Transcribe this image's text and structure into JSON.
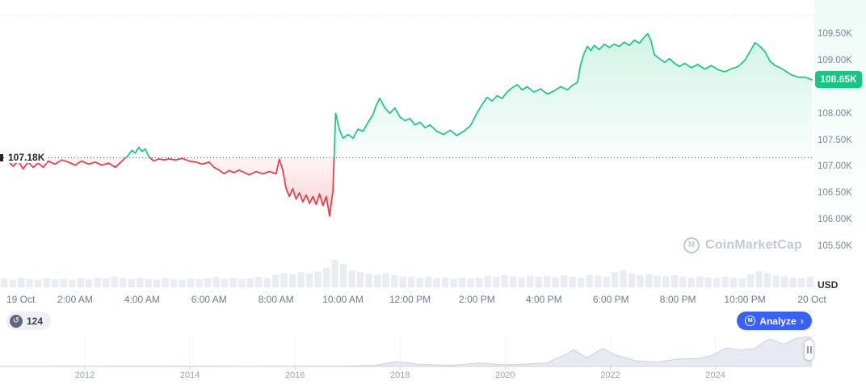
{
  "colors": {
    "green": "#16c784",
    "red": "#ea3943",
    "blue": "#3861fb",
    "axis_text": "#7d879c",
    "dark_text": "#222531",
    "watermark": "#c2c9d6",
    "volume_bar": "#e9ecf2",
    "mini_fill": "#e7eaf0",
    "mini_stroke": "#cbd2de"
  },
  "icons": {
    "history": "↺",
    "chevron_right": "›",
    "logo_letter": "M"
  },
  "ref_line": {
    "label": "107.18K",
    "value": 107.18
  },
  "price_badge": {
    "label": "108.65K",
    "value": 108.65
  },
  "y_axis": {
    "unit_label": "USD",
    "ticks": [
      {
        "label": "109.50K",
        "value": 109.5
      },
      {
        "label": "109.00K",
        "value": 109.0
      },
      {
        "label": "108.00K",
        "value": 108.0
      },
      {
        "label": "107.50K",
        "value": 107.5
      },
      {
        "label": "107.00K",
        "value": 107.0
      },
      {
        "label": "106.50K",
        "value": 106.5
      },
      {
        "label": "106.00K",
        "value": 106.0
      },
      {
        "label": "105.50K",
        "value": 105.5
      }
    ]
  },
  "x_axis": {
    "ticks": [
      {
        "label": "19 Oct",
        "hour": 0
      },
      {
        "label": "2:00 AM",
        "hour": 2
      },
      {
        "label": "4:00 AM",
        "hour": 4
      },
      {
        "label": "6:00 AM",
        "hour": 6
      },
      {
        "label": "8:00 AM",
        "hour": 8
      },
      {
        "label": "10:00 AM",
        "hour": 10
      },
      {
        "label": "12:00 PM",
        "hour": 12
      },
      {
        "label": "2:00 PM",
        "hour": 14
      },
      {
        "label": "4:00 PM",
        "hour": 16
      },
      {
        "label": "6:00 PM",
        "hour": 18
      },
      {
        "label": "8:00 PM",
        "hour": 20
      },
      {
        "label": "10:00 PM",
        "hour": 22
      },
      {
        "label": "20 Oct",
        "hour": 24
      }
    ]
  },
  "watermark": {
    "text": "CoinMarketCap"
  },
  "history_badge": {
    "count": "124"
  },
  "analyze_button": {
    "label": "Analyze"
  },
  "chart_data": {
    "type": "line",
    "title": "24h price chart (USD thousands), 19 Oct - 20 Oct",
    "x_unit": "hours since 19 Oct 00:00",
    "x_range": [
      0,
      24
    ],
    "y_range": [
      105.5,
      109.5
    ],
    "y_unit": "K USD",
    "previous_close": 107.18,
    "last_price": 108.65,
    "grid": "off",
    "main_series": [
      [
        0,
        107.12
      ],
      [
        0.15,
        107.02
      ],
      [
        0.3,
        107.12
      ],
      [
        0.45,
        106.97
      ],
      [
        0.6,
        107.1
      ],
      [
        0.75,
        107.0
      ],
      [
        0.9,
        107.08
      ],
      [
        1.05,
        107.0
      ],
      [
        1.2,
        107.12
      ],
      [
        1.4,
        107.06
      ],
      [
        1.6,
        107.14
      ],
      [
        1.8,
        107.1
      ],
      [
        2.0,
        107.04
      ],
      [
        2.2,
        107.12
      ],
      [
        2.4,
        107.06
      ],
      [
        2.6,
        107.1
      ],
      [
        2.8,
        107.04
      ],
      [
        3.0,
        107.08
      ],
      [
        3.2,
        107.0
      ],
      [
        3.4,
        107.12
      ],
      [
        3.55,
        107.2
      ],
      [
        3.7,
        107.32
      ],
      [
        3.8,
        107.27
      ],
      [
        3.9,
        107.38
      ],
      [
        4.0,
        107.3
      ],
      [
        4.1,
        107.35
      ],
      [
        4.2,
        107.2
      ],
      [
        4.35,
        107.12
      ],
      [
        4.5,
        107.16
      ],
      [
        4.65,
        107.14
      ],
      [
        4.8,
        107.16
      ],
      [
        5.0,
        107.14
      ],
      [
        5.2,
        107.17
      ],
      [
        5.4,
        107.12
      ],
      [
        5.6,
        107.1
      ],
      [
        5.8,
        107.06
      ],
      [
        6.0,
        107.1
      ],
      [
        6.15,
        107.0
      ],
      [
        6.3,
        106.95
      ],
      [
        6.45,
        106.88
      ],
      [
        6.6,
        106.94
      ],
      [
        6.75,
        106.9
      ],
      [
        6.9,
        106.95
      ],
      [
        7.05,
        106.9
      ],
      [
        7.2,
        106.86
      ],
      [
        7.4,
        106.92
      ],
      [
        7.6,
        106.88
      ],
      [
        7.8,
        106.92
      ],
      [
        8.0,
        106.88
      ],
      [
        8.1,
        107.15
      ],
      [
        8.2,
        106.95
      ],
      [
        8.3,
        106.6
      ],
      [
        8.4,
        106.45
      ],
      [
        8.5,
        106.6
      ],
      [
        8.6,
        106.4
      ],
      [
        8.7,
        106.52
      ],
      [
        8.8,
        106.35
      ],
      [
        8.9,
        106.48
      ],
      [
        9.0,
        106.32
      ],
      [
        9.1,
        106.45
      ],
      [
        9.2,
        106.3
      ],
      [
        9.3,
        106.5
      ],
      [
        9.4,
        106.28
      ],
      [
        9.5,
        106.45
      ],
      [
        9.6,
        106.08
      ],
      [
        9.7,
        106.55
      ],
      [
        9.78,
        108.02
      ],
      [
        9.9,
        107.7
      ],
      [
        10.0,
        107.55
      ],
      [
        10.15,
        107.62
      ],
      [
        10.3,
        107.55
      ],
      [
        10.45,
        107.72
      ],
      [
        10.6,
        107.68
      ],
      [
        10.75,
        107.85
      ],
      [
        10.9,
        108.0
      ],
      [
        11.0,
        108.18
      ],
      [
        11.1,
        108.3
      ],
      [
        11.25,
        108.12
      ],
      [
        11.4,
        108.02
      ],
      [
        11.55,
        108.12
      ],
      [
        11.7,
        107.95
      ],
      [
        11.85,
        107.88
      ],
      [
        12.0,
        107.92
      ],
      [
        12.15,
        107.8
      ],
      [
        12.3,
        107.85
      ],
      [
        12.45,
        107.75
      ],
      [
        12.6,
        107.8
      ],
      [
        12.8,
        107.68
      ],
      [
        13.0,
        107.62
      ],
      [
        13.2,
        107.7
      ],
      [
        13.4,
        107.6
      ],
      [
        13.6,
        107.68
      ],
      [
        13.8,
        107.78
      ],
      [
        14.0,
        108.02
      ],
      [
        14.15,
        108.18
      ],
      [
        14.3,
        108.32
      ],
      [
        14.45,
        108.25
      ],
      [
        14.6,
        108.35
      ],
      [
        14.75,
        108.3
      ],
      [
        14.9,
        108.42
      ],
      [
        15.05,
        108.5
      ],
      [
        15.2,
        108.56
      ],
      [
        15.35,
        108.46
      ],
      [
        15.5,
        108.52
      ],
      [
        15.7,
        108.42
      ],
      [
        15.9,
        108.48
      ],
      [
        16.1,
        108.38
      ],
      [
        16.3,
        108.44
      ],
      [
        16.5,
        108.52
      ],
      [
        16.7,
        108.46
      ],
      [
        16.85,
        108.55
      ],
      [
        17.0,
        108.6
      ],
      [
        17.1,
        108.95
      ],
      [
        17.2,
        109.15
      ],
      [
        17.3,
        109.28
      ],
      [
        17.4,
        109.2
      ],
      [
        17.5,
        109.3
      ],
      [
        17.65,
        109.22
      ],
      [
        17.8,
        109.32
      ],
      [
        17.95,
        109.26
      ],
      [
        18.1,
        109.32
      ],
      [
        18.25,
        109.28
      ],
      [
        18.4,
        109.36
      ],
      [
        18.55,
        109.3
      ],
      [
        18.7,
        109.4
      ],
      [
        18.85,
        109.34
      ],
      [
        19.0,
        109.46
      ],
      [
        19.1,
        109.52
      ],
      [
        19.2,
        109.38
      ],
      [
        19.3,
        109.12
      ],
      [
        19.45,
        109.05
      ],
      [
        19.6,
        108.98
      ],
      [
        19.75,
        109.05
      ],
      [
        19.9,
        108.96
      ],
      [
        20.05,
        108.9
      ],
      [
        20.2,
        108.96
      ],
      [
        20.4,
        108.88
      ],
      [
        20.6,
        108.94
      ],
      [
        20.8,
        108.85
      ],
      [
        21.0,
        108.92
      ],
      [
        21.2,
        108.84
      ],
      [
        21.4,
        108.8
      ],
      [
        21.6,
        108.86
      ],
      [
        21.8,
        108.9
      ],
      [
        22.0,
        109.02
      ],
      [
        22.15,
        109.18
      ],
      [
        22.3,
        109.35
      ],
      [
        22.45,
        109.28
      ],
      [
        22.6,
        109.18
      ],
      [
        22.75,
        109.0
      ],
      [
        22.9,
        108.92
      ],
      [
        23.05,
        108.88
      ],
      [
        23.2,
        108.82
      ],
      [
        23.4,
        108.74
      ],
      [
        23.6,
        108.7
      ],
      [
        23.8,
        108.7
      ],
      [
        24.0,
        108.65
      ]
    ],
    "volume": [
      0.32,
      0.28,
      0.35,
      0.3,
      0.27,
      0.33,
      0.29,
      0.31,
      0.28,
      0.34,
      0.3,
      0.36,
      0.32,
      0.38,
      0.33,
      0.3,
      0.35,
      0.31,
      0.28,
      0.33,
      0.3,
      0.27,
      0.32,
      0.29,
      0.33,
      0.37,
      0.31,
      0.35,
      0.3,
      0.34,
      0.38,
      0.33,
      0.45,
      0.52,
      0.48,
      0.55,
      0.5,
      0.58,
      0.72,
      1.0,
      0.85,
      0.62,
      0.55,
      0.5,
      0.46,
      0.52,
      0.44,
      0.4,
      0.38,
      0.35,
      0.4,
      0.33,
      0.36,
      0.31,
      0.35,
      0.32,
      0.36,
      0.42,
      0.38,
      0.45,
      0.4,
      0.36,
      0.42,
      0.38,
      0.4,
      0.36,
      0.44,
      0.39,
      0.35,
      0.46,
      0.42,
      0.38,
      0.55,
      0.62,
      0.5,
      0.45,
      0.48,
      0.42,
      0.4,
      0.44,
      0.38,
      0.35,
      0.4,
      0.36,
      0.33,
      0.38,
      0.35,
      0.32,
      0.48,
      0.58,
      0.52,
      0.44,
      0.4,
      0.36,
      0.34,
      0.38
    ],
    "range_selector": {
      "years": [
        2012,
        2014,
        2016,
        2018,
        2020,
        2022,
        2024
      ],
      "x_range": [
        2010.4,
        2025.85
      ],
      "series": [
        [
          2010.4,
          0.002
        ],
        [
          2011,
          0.004
        ],
        [
          2012,
          0.006
        ],
        [
          2013,
          0.012
        ],
        [
          2013.5,
          0.008
        ],
        [
          2014,
          0.01
        ],
        [
          2015,
          0.004
        ],
        [
          2016,
          0.007
        ],
        [
          2016.8,
          0.01
        ],
        [
          2017.5,
          0.03
        ],
        [
          2017.95,
          0.17
        ],
        [
          2018.3,
          0.08
        ],
        [
          2018.95,
          0.035
        ],
        [
          2019.5,
          0.115
        ],
        [
          2019.9,
          0.065
        ],
        [
          2020.2,
          0.06
        ],
        [
          2020.8,
          0.12
        ],
        [
          2020.95,
          0.25
        ],
        [
          2021.1,
          0.35
        ],
        [
          2021.3,
          0.56
        ],
        [
          2021.55,
          0.28
        ],
        [
          2021.85,
          0.6
        ],
        [
          2022.1,
          0.38
        ],
        [
          2022.5,
          0.18
        ],
        [
          2022.9,
          0.15
        ],
        [
          2023.3,
          0.25
        ],
        [
          2023.7,
          0.27
        ],
        [
          2023.95,
          0.38
        ],
        [
          2024.2,
          0.62
        ],
        [
          2024.5,
          0.55
        ],
        [
          2024.75,
          0.6
        ],
        [
          2024.95,
          0.85
        ],
        [
          2025.05,
          0.92
        ],
        [
          2025.3,
          0.74
        ],
        [
          2025.55,
          0.95
        ],
        [
          2025.75,
          1.0
        ],
        [
          2025.82,
          0.96
        ]
      ]
    }
  }
}
